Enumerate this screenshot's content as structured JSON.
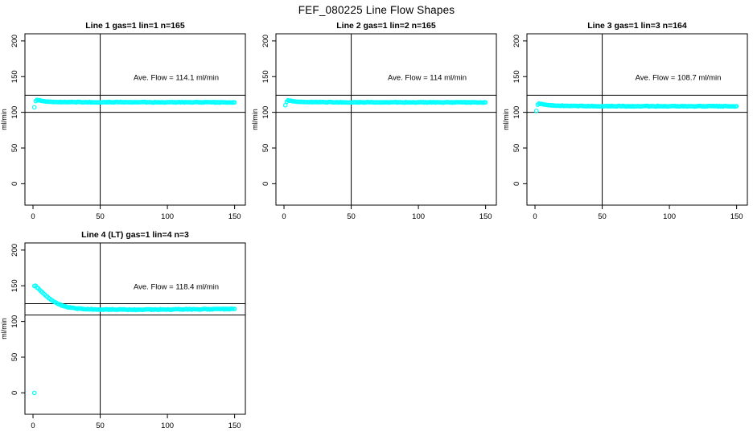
{
  "page_title": "FEF_080225  Line Flow Shapes",
  "colors": {
    "data_point": "#00ffff",
    "axis": "#000000",
    "background": "#ffffff"
  },
  "axes": {
    "ylabel": "ml/min",
    "xlabel": "",
    "x_ticks": [
      0,
      50,
      100,
      150
    ],
    "y_ticks": [
      0,
      50,
      100,
      150,
      200
    ]
  },
  "chart_data": [
    {
      "type": "scatter",
      "title": "Line 1 gas=1 lin=1 n=165",
      "annotation": "Ave. Flow =  114.1  ml/min",
      "ave_flow": 114.1,
      "n_label": 165,
      "ylabel": "ml/min",
      "xlabel": "",
      "x_ticks": [
        0,
        50,
        100,
        150
      ],
      "y_ticks": [
        0,
        50,
        100,
        150,
        200
      ],
      "xlim": [
        -6,
        158
      ],
      "ylim": [
        -30,
        210
      ],
      "vline_x": 50,
      "hlines": [
        100,
        124
      ],
      "marker": "open-circle",
      "n_points": 163,
      "jitter": 0.9,
      "profile": [
        [
          2,
          116
        ],
        [
          3,
          117
        ],
        [
          4,
          117
        ],
        [
          6,
          116.3
        ],
        [
          9,
          115.3
        ],
        [
          14,
          114.7
        ],
        [
          20,
          114.4
        ],
        [
          30,
          114.3
        ],
        [
          50,
          114.2
        ],
        [
          70,
          114.3
        ],
        [
          90,
          114.1
        ],
        [
          110,
          114.1
        ],
        [
          130,
          114.0
        ],
        [
          150,
          113.9
        ]
      ],
      "outliers": [
        [
          1,
          107
        ]
      ]
    },
    {
      "type": "scatter",
      "title": "Line 2 gas=1 lin=2 n=165",
      "annotation": "Ave. Flow =  114  ml/min",
      "ave_flow": 114,
      "n_label": 165,
      "ylabel": "ml/min",
      "xlabel": "",
      "x_ticks": [
        0,
        50,
        100,
        150
      ],
      "y_ticks": [
        0,
        50,
        100,
        150,
        200
      ],
      "xlim": [
        -6,
        158
      ],
      "ylim": [
        -30,
        210
      ],
      "vline_x": 50,
      "hlines": [
        100,
        124
      ],
      "marker": "open-circle",
      "n_points": 163,
      "jitter": 0.9,
      "profile": [
        [
          2,
          115
        ],
        [
          3,
          116.5
        ],
        [
          4,
          116.5
        ],
        [
          6,
          115.8
        ],
        [
          9,
          115
        ],
        [
          14,
          114.6
        ],
        [
          20,
          114.4
        ],
        [
          30,
          114.2
        ],
        [
          50,
          114.1
        ],
        [
          70,
          114.1
        ],
        [
          90,
          114.0
        ],
        [
          110,
          114.0
        ],
        [
          130,
          113.9
        ],
        [
          150,
          113.9
        ]
      ],
      "outliers": [
        [
          1,
          110
        ]
      ]
    },
    {
      "type": "scatter",
      "title": "Line 3 gas=1 lin=3 n=164",
      "annotation": "Ave. Flow =  108.7  ml/min",
      "ave_flow": 108.7,
      "n_label": 164,
      "ylabel": "ml/min",
      "xlabel": "",
      "x_ticks": [
        0,
        50,
        100,
        150
      ],
      "y_ticks": [
        0,
        50,
        100,
        150,
        200
      ],
      "xlim": [
        -6,
        158
      ],
      "ylim": [
        -30,
        210
      ],
      "vline_x": 50,
      "hlines": [
        100,
        124
      ],
      "marker": "open-circle",
      "n_points": 162,
      "jitter": 0.9,
      "profile": [
        [
          2,
          111
        ],
        [
          3,
          112
        ],
        [
          4,
          112
        ],
        [
          6,
          111.3
        ],
        [
          9,
          110.3
        ],
        [
          14,
          109.6
        ],
        [
          20,
          109.2
        ],
        [
          30,
          108.9
        ],
        [
          50,
          108.7
        ],
        [
          70,
          108.6
        ],
        [
          90,
          108.6
        ],
        [
          110,
          108.5
        ],
        [
          130,
          108.5
        ],
        [
          150,
          108.5
        ]
      ],
      "outliers": [
        [
          1,
          102
        ]
      ]
    },
    {
      "type": "scatter",
      "title": "Line 4 (LT) gas=1 lin=4 n=3",
      "annotation": "Ave. Flow =  118.4  ml/min",
      "ave_flow": 118.4,
      "n_label": 3,
      "ylabel": "ml/min",
      "xlabel": "",
      "x_ticks": [
        0,
        50,
        100,
        150
      ],
      "y_ticks": [
        0,
        50,
        100,
        150,
        200
      ],
      "xlim": [
        -6,
        158
      ],
      "ylim": [
        -30,
        210
      ],
      "vline_x": 50,
      "hlines": [
        109,
        125
      ],
      "marker": "open-circle",
      "n_points": 155,
      "jitter": 1.1,
      "profile": [
        [
          1,
          150
        ],
        [
          2,
          149.5
        ],
        [
          4,
          146
        ],
        [
          6,
          142.5
        ],
        [
          8,
          139
        ],
        [
          10,
          135.5
        ],
        [
          13,
          131
        ],
        [
          16,
          127.5
        ],
        [
          19,
          124.5
        ],
        [
          22,
          122
        ],
        [
          26,
          120
        ],
        [
          30,
          118.7
        ],
        [
          35,
          117.8
        ],
        [
          40,
          117.3
        ],
        [
          50,
          117
        ],
        [
          60,
          116.8
        ],
        [
          75,
          116.6
        ],
        [
          90,
          116.7
        ],
        [
          105,
          116.9
        ],
        [
          120,
          117
        ],
        [
          135,
          117.2
        ],
        [
          150,
          117.5
        ]
      ],
      "outliers": [
        [
          1,
          0
        ]
      ]
    }
  ]
}
